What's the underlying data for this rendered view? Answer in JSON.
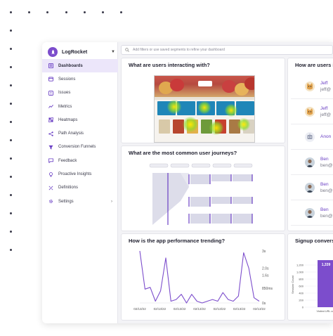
{
  "app": {
    "name": "LogRocket"
  },
  "search": {
    "placeholder": "Add filters or use saved segments to refine your dashboard"
  },
  "sidebar": {
    "items": [
      {
        "label": "Dashboards",
        "icon": "dashboard-icon",
        "active": true
      },
      {
        "label": "Sessions",
        "icon": "sessions-icon"
      },
      {
        "label": "Issues",
        "icon": "issues-icon"
      },
      {
        "label": "Metrics",
        "icon": "metrics-icon"
      },
      {
        "label": "Heatmaps",
        "icon": "heatmaps-icon"
      },
      {
        "label": "Path Analysis",
        "icon": "path-analysis-icon"
      },
      {
        "label": "Conversion Funnels",
        "icon": "funnel-icon"
      },
      {
        "label": "Feedback",
        "icon": "feedback-icon"
      },
      {
        "label": "Proactive Insights",
        "icon": "lightbulb-icon"
      },
      {
        "label": "Definitions",
        "icon": "definitions-icon"
      },
      {
        "label": "Settings",
        "icon": "gear-icon",
        "has_chevron": true
      }
    ]
  },
  "cards": {
    "interacting": {
      "title": "What are users interacting with?"
    },
    "journeys": {
      "title": "What are the most common user journeys?"
    },
    "performance": {
      "title": "How is the app performance trending?"
    },
    "users": {
      "title": "How are users i"
    },
    "signup": {
      "title": "Signup conversi"
    }
  },
  "users_list": [
    {
      "name": "Jeff",
      "email": "jeff@",
      "avatar": "cat"
    },
    {
      "name": "Jeff",
      "email": "jeff@",
      "avatar": "cat"
    },
    {
      "name": "Anon",
      "email": "",
      "avatar": "robot"
    },
    {
      "name": "Ben",
      "email": "ben@",
      "avatar": "person"
    },
    {
      "name": "Ben",
      "email": "ben@",
      "avatar": "person"
    },
    {
      "name": "Ben",
      "email": "ben@",
      "avatar": "person"
    }
  ],
  "colors": {
    "accent": "#7c4dcc",
    "accent_light": "#ece6fa",
    "line": "#7c4dcc"
  },
  "chart_data": [
    {
      "type": "line",
      "title": "How is the app performance trending?",
      "x": [
        "02/13/22",
        "02/13/22",
        "02/13/22",
        "02/13/22",
        "02/13/22",
        "02/13/22",
        "02/13/22",
        "02/13/22",
        "02/13/22",
        "02/13/22",
        "02/13/22",
        "02/13/22",
        "02/13/22",
        "02/13/22",
        "02/13/22",
        "02/13/22",
        "02/13/22",
        "02/13/22",
        "02/13/22",
        "02/13/22",
        "02/13/22",
        "02/13/22",
        "02/13/22",
        "02/13/22"
      ],
      "x_tick_labels": [
        "02/13/22",
        "02/13/22",
        "02/13/22",
        "02/13/22",
        "02/13/22",
        "02/13/22",
        "02/13/22"
      ],
      "series": [
        {
          "values": [
            3.0,
            0.8,
            0.9,
            0.1,
            0.7,
            2.6,
            0.1,
            0.2,
            0.5,
            0.0,
            0.5,
            0.1,
            0.0,
            0.1,
            0.2,
            0.1,
            0.6,
            0.2,
            0.1,
            0.4,
            2.9,
            2.0,
            0.3,
            0.1
          ]
        }
      ],
      "y_tick_labels": [
        "0s",
        "850ms",
        "1.6s",
        "2.0s",
        "3s"
      ],
      "y_tick_values": [
        0,
        0.85,
        1.6,
        2.0,
        3.0
      ],
      "ylim": [
        0,
        3.0
      ]
    },
    {
      "type": "bar",
      "title": "Signup conversi",
      "ylabel": "Session Count",
      "categories": [
        "Visited URL contai"
      ],
      "values": [
        1339
      ],
      "data_labels": [
        "1,339"
      ],
      "y_tick_labels": [
        "0",
        "200",
        "400",
        "600",
        "800",
        "1,000",
        "1,200"
      ],
      "y_tick_values": [
        0,
        200,
        400,
        600,
        800,
        1000,
        1200
      ],
      "ylim": [
        0,
        1400
      ]
    },
    {
      "type": "table",
      "title": "What are the most common user journeys?",
      "note": "path analysis flow; step labels too small to read"
    }
  ]
}
